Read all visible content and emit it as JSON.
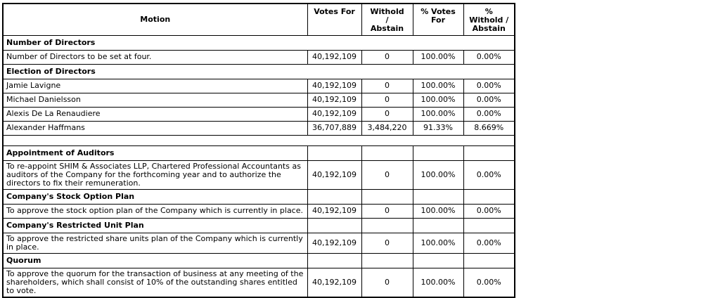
{
  "table": {
    "headers": {
      "motion": "Motion",
      "votes_for": "Votes For",
      "withold_abstain": "Withold\n/\nAbstain",
      "pct_votes_for": "% Votes\nFor",
      "pct_withold_abstain": "%\nWithold /\nAbstain"
    },
    "rows": [
      {
        "type": "section_full",
        "motion": "Number of Directors"
      },
      {
        "type": "data",
        "motion": "Number of Directors to be set at four.",
        "votes_for": "40,192,109",
        "withold_abstain": "0",
        "pct_votes_for": "100.00%",
        "pct_withold_abstain": "0.00%"
      },
      {
        "type": "section_full",
        "motion": "Election of Directors"
      },
      {
        "type": "data",
        "motion": "Jamie Lavigne",
        "votes_for": "40,192,109",
        "withold_abstain": "0",
        "pct_votes_for": "100.00%",
        "pct_withold_abstain": "0.00%"
      },
      {
        "type": "data",
        "motion": "Michael Danielsson",
        "votes_for": "40,192,109",
        "withold_abstain": "0",
        "pct_votes_for": "100.00%",
        "pct_withold_abstain": "0.00%"
      },
      {
        "type": "data",
        "motion": "Alexis De La Renaudiere",
        "votes_for": "40,192,109",
        "withold_abstain": "0",
        "pct_votes_for": "100.00%",
        "pct_withold_abstain": "0.00%"
      },
      {
        "type": "data",
        "motion": "Alexander Haffmans",
        "votes_for": "36,707,889",
        "withold_abstain": "3,484,220",
        "pct_votes_for": "91.33%",
        "pct_withold_abstain": "8.669%"
      },
      {
        "type": "spacer",
        "motion": ""
      },
      {
        "type": "section_cells",
        "motion": "Appointment of Auditors"
      },
      {
        "type": "data",
        "motion": "To re-appoint SHIM & Associates LLP, Chartered Professional Accountants as auditors of the Company for the forthcoming year and to authorize the directors to fix their remuneration.",
        "votes_for": "40,192,109",
        "withold_abstain": "0",
        "pct_votes_for": "100.00%",
        "pct_withold_abstain": "0.00%"
      },
      {
        "type": "section_cells",
        "motion": "Company's Stock Option Plan"
      },
      {
        "type": "data",
        "motion": "To approve the stock option plan of the Company which is currently in place.",
        "votes_for": "40,192,109",
        "withold_abstain": "0",
        "pct_votes_for": "100.00%",
        "pct_withold_abstain": "0.00%"
      },
      {
        "type": "section_cells",
        "motion": "Company's Restricted Unit Plan"
      },
      {
        "type": "data",
        "motion": "To approve the restricted share units plan of the Company which is currently in place.",
        "votes_for": "40,192,109",
        "withold_abstain": "0",
        "pct_votes_for": "100.00%",
        "pct_withold_abstain": "0.00%"
      },
      {
        "type": "section_cells",
        "motion": "Quorum"
      },
      {
        "type": "data",
        "motion": "To approve the quorum for the transaction of business at any meeting of the shareholders, which shall consist of 10% of the outstanding shares entitled to vote.",
        "votes_for": "40,192,109",
        "withold_abstain": "0",
        "pct_votes_for": "100.00%",
        "pct_withold_abstain": "0.00%"
      }
    ]
  }
}
